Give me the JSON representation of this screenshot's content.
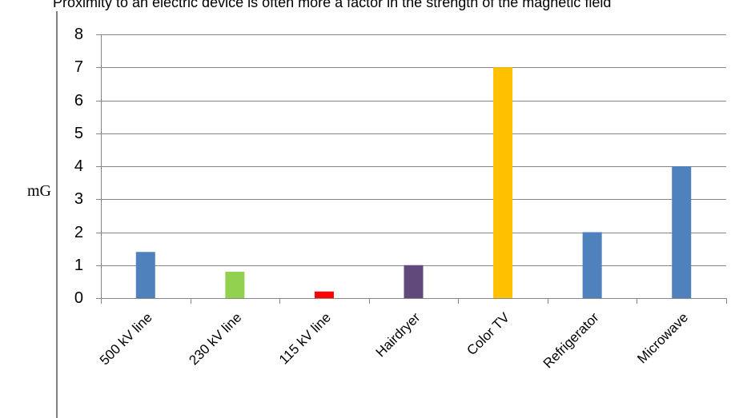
{
  "chart_data": {
    "type": "bar",
    "title": "Proximity to an electric device is often more a factor in the strength of the magnetic field",
    "xlabel": "",
    "ylabel": "mG",
    "categories": [
      "500 kV line",
      "230 kV line",
      "115 kV line",
      "Hairdryer",
      "Color TV",
      "Refrigerator",
      "Microwave"
    ],
    "values": [
      1.4,
      0.8,
      0.2,
      1.0,
      7.0,
      2.0,
      4.0
    ],
    "colors": [
      "#4F81BD",
      "#92D050",
      "#FF0000",
      "#604A7B",
      "#FFC000",
      "#4F81BD",
      "#4F81BD"
    ],
    "ylim": [
      0,
      8
    ],
    "yticks": [
      0,
      1,
      2,
      3,
      4,
      5,
      6,
      7,
      8
    ],
    "grid": true,
    "legend": "none"
  }
}
